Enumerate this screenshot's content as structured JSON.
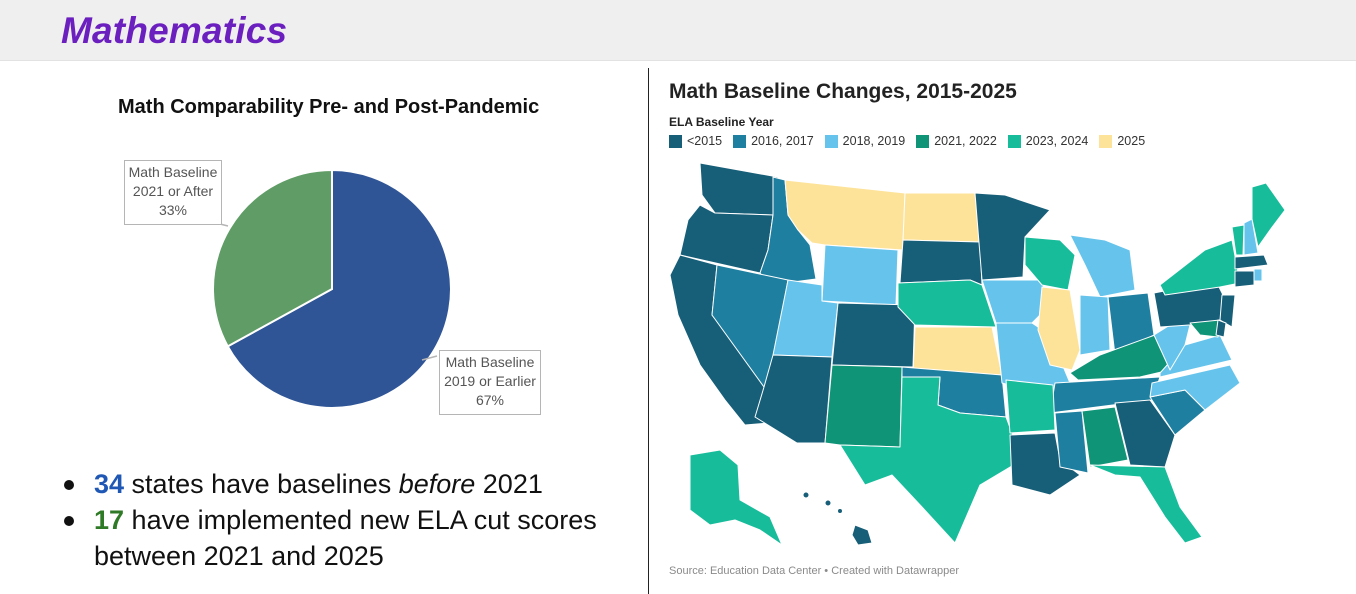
{
  "header": {
    "title": "Mathematics"
  },
  "chart_data": [
    {
      "type": "pie",
      "title": "Math Comparability Pre- and Post-Pandemic",
      "slices": [
        {
          "label_line1": "Math Baseline",
          "label_line2": "2019 or Earlier",
          "label_pct": "67%",
          "value": 67,
          "color": "#2f5597"
        },
        {
          "label_line1": "Math Baseline",
          "label_line2": "2021 or After",
          "label_pct": "33%",
          "value": 33,
          "color": "#5f9c66"
        }
      ]
    },
    {
      "type": "choropleth",
      "title": "Math Baseline Changes, 2015-2025",
      "legend_title": "ELA Baseline Year",
      "legend": [
        {
          "label": "<2015",
          "color": "#175e78"
        },
        {
          "label": "2016, 2017",
          "color": "#1e7fa0"
        },
        {
          "label": "2018, 2019",
          "color": "#66c4ec"
        },
        {
          "label": "2021, 2022",
          "color": "#0f9477"
        },
        {
          "label": "2023, 2024",
          "color": "#17bc9b"
        },
        {
          "label": "2025",
          "color": "#fde39a"
        }
      ],
      "source": "Source: Education Data Center • Created with Datawrapper"
    }
  ],
  "bullets": [
    {
      "number": "34",
      "text_before_em": " states have baselines ",
      "em": "before",
      "text_after": " 2021"
    },
    {
      "number": "17",
      "text": " have implemented new ELA cut scores between 2021 and 2025"
    }
  ]
}
